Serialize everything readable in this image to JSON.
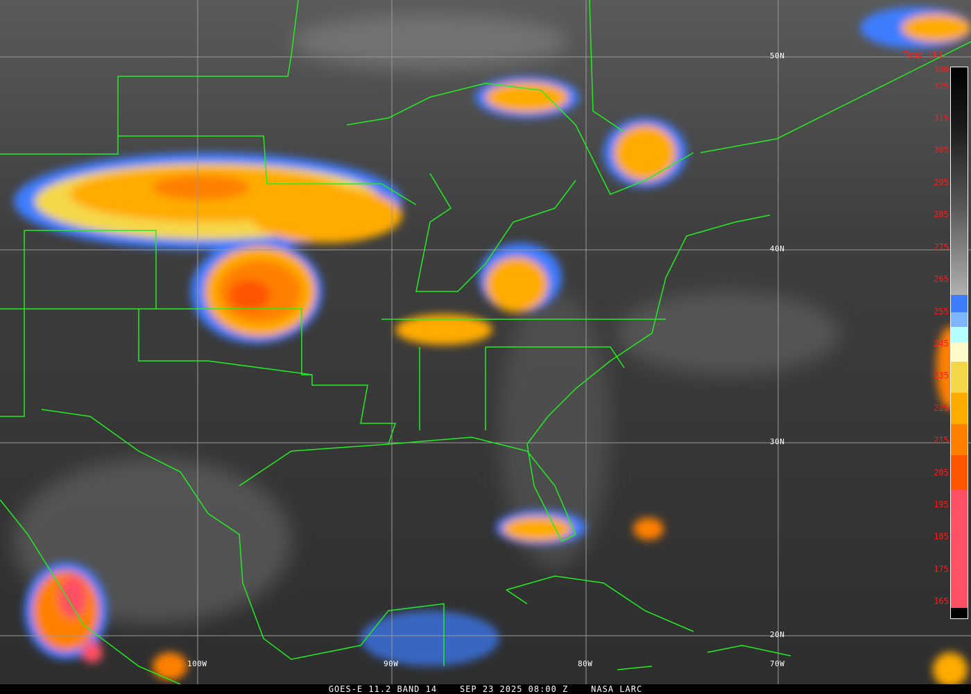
{
  "caption": "GOES-E 11.2 BAND 14    SEP 23 2025 08:00 Z    NASA LARC",
  "caption_parts": {
    "satellite": "GOES-E 11.2 BAND 14",
    "datetime": "SEP 23 2025 08:00 Z",
    "credit": "NASA LARC"
  },
  "latitude_labels": [
    "50N",
    "40N",
    "30N",
    "20N"
  ],
  "longitude_labels": [
    "100W",
    "90W",
    "80W",
    "70W"
  ],
  "legend": {
    "title": "Temp [K]",
    "ticks": [
      "330",
      "325",
      "315",
      "305",
      "295",
      "285",
      "275",
      "265",
      "255",
      "245",
      "235",
      "225",
      "215",
      "205",
      "195",
      "185",
      "175",
      "165"
    ],
    "colors": {
      "blue": "#3d7dff",
      "light_blue": "#7fb4ff",
      "cyan": "#b4ffff",
      "pale_yellow": "#fffac8",
      "yellow": "#f4d84a",
      "amber": "#ffab00",
      "orange": "#ff8000",
      "red_orange": "#ff5500",
      "pink": "#ff5064"
    }
  },
  "colors": {
    "border_lines": "#22ee22",
    "grid_lines": "#9a9a9a",
    "caption_bg": "#000000",
    "caption_text": "#ffffff",
    "legend_text": "#ff1a1a"
  }
}
